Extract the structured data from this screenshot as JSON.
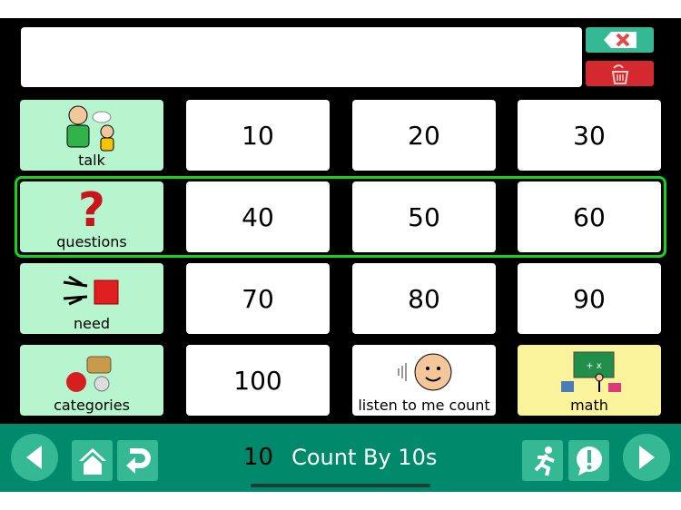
{
  "message_bar": {
    "text": ""
  },
  "controls": {
    "backspace_icon": "backspace-x-icon",
    "clear_icon": "trash-icon",
    "backspace_color": "#35b894",
    "clear_color": "#d42a2f"
  },
  "grid": {
    "rows": [
      [
        {
          "label": "talk",
          "type": "category"
        },
        {
          "label": "10"
        },
        {
          "label": "20"
        },
        {
          "label": "30"
        }
      ],
      [
        {
          "label": "questions",
          "type": "category"
        },
        {
          "label": "40"
        },
        {
          "label": "50"
        },
        {
          "label": "60"
        }
      ],
      [
        {
          "label": "need",
          "type": "category"
        },
        {
          "label": "70"
        },
        {
          "label": "80"
        },
        {
          "label": "90"
        }
      ],
      [
        {
          "label": "categories",
          "type": "category"
        },
        {
          "label": "100"
        },
        {
          "label": "listen to me count"
        },
        {
          "label": "math",
          "type": "highlight"
        }
      ]
    ],
    "highlighted_row": 1,
    "category_color": "#b7f5cf",
    "math_color": "#fbf29c",
    "highlight_color": "#19d119"
  },
  "nav": {
    "page_number": "10",
    "page_title": "Count By 10s",
    "bar_color": "#008a6b"
  }
}
